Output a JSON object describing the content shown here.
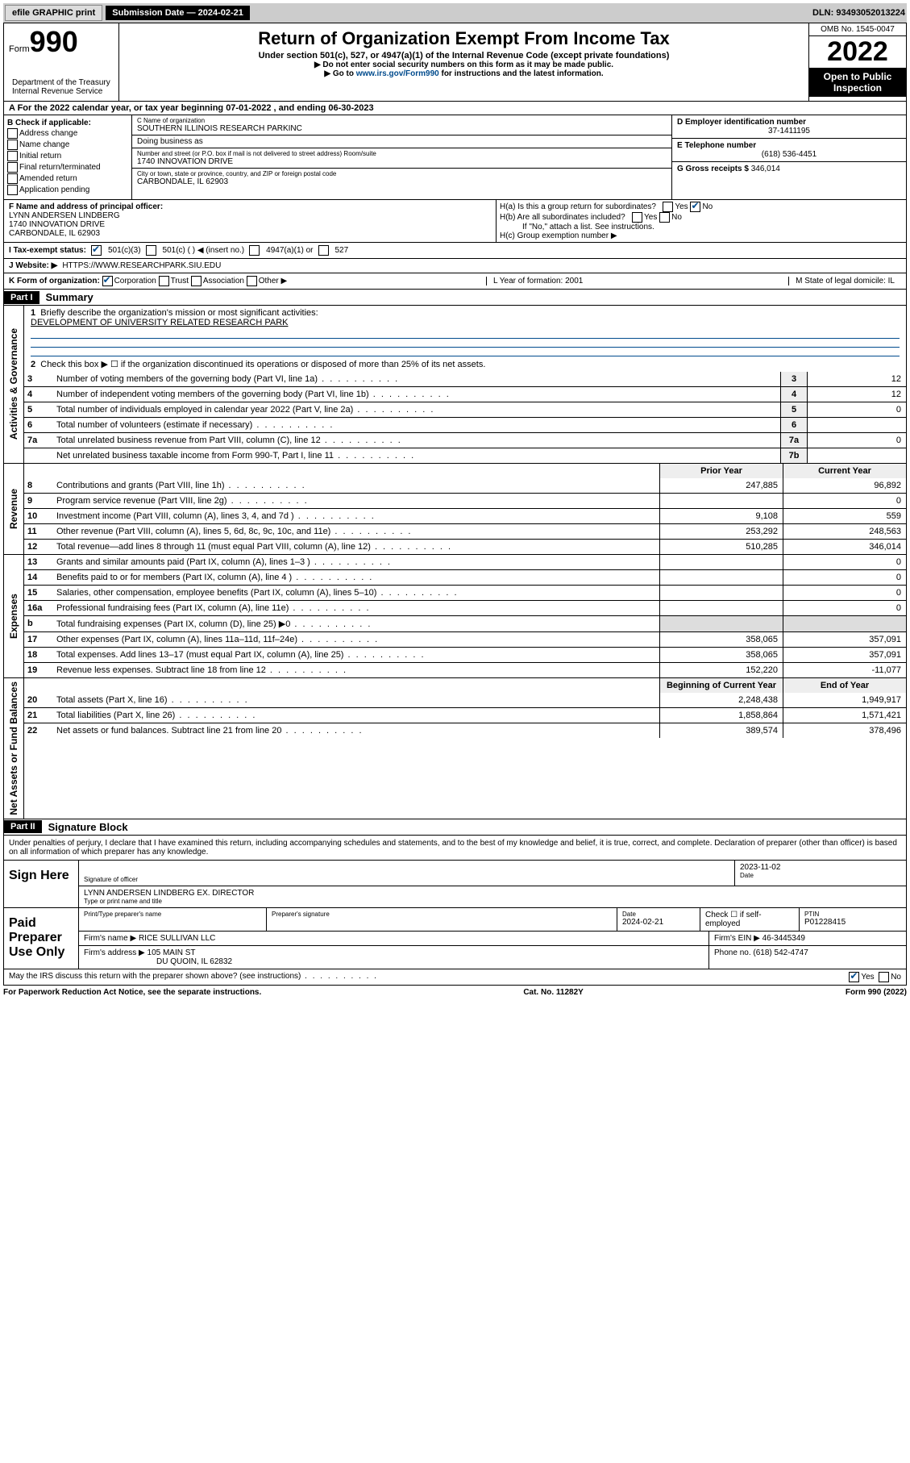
{
  "topbar": {
    "efile": "efile GRAPHIC print",
    "sub_label": "Submission Date — 2024-02-21",
    "dln": "DLN: 93493052013224"
  },
  "header": {
    "form_prefix": "Form",
    "form_num": "990",
    "title": "Return of Organization Exempt From Income Tax",
    "subtitle": "Under section 501(c), 527, or 4947(a)(1) of the Internal Revenue Code (except private foundations)",
    "note1": "▶ Do not enter social security numbers on this form as it may be made public.",
    "note2_pre": "▶ Go to ",
    "note2_link": "www.irs.gov/Form990",
    "note2_post": " for instructions and the latest information.",
    "dept": "Department of the Treasury\nInternal Revenue Service",
    "omb": "OMB No. 1545-0047",
    "year": "2022",
    "inspection": "Open to Public Inspection"
  },
  "tax_year": "A For the 2022 calendar year, or tax year beginning 07-01-2022   , and ending 06-30-2023",
  "section_b": {
    "label": "B Check if applicable:",
    "items": [
      "Address change",
      "Name change",
      "Initial return",
      "Final return/terminated",
      "Amended return",
      "Application pending"
    ]
  },
  "section_c": {
    "clabel": "C Name of organization",
    "name": "SOUTHERN ILLINOIS RESEARCH PARKINC",
    "dba": "Doing business as",
    "addr_label": "Number and street (or P.O. box if mail is not delivered to street address)    Room/suite",
    "addr": "1740 INNOVATION DRIVE",
    "city_label": "City or town, state or province, country, and ZIP or foreign postal code",
    "city": "CARBONDALE, IL  62903"
  },
  "section_right": {
    "d_label": "D Employer identification number",
    "ein": "37-1411195",
    "e_label": "E Telephone number",
    "phone": "(618) 536-4451",
    "g_label": "G Gross receipts $",
    "gross": "346,014"
  },
  "section_f": {
    "label": "F Name and address of principal officer:",
    "name": "LYNN ANDERSEN LINDBERG",
    "addr1": "1740 INNOVATION DRIVE",
    "addr2": "CARBONDALE, IL  62903"
  },
  "section_h": {
    "ha": "H(a)  Is this a group return for subordinates?",
    "hb": "H(b)  Are all subordinates included?",
    "hb_note": "If \"No,\" attach a list. See instructions.",
    "hc": "H(c)  Group exemption number ▶",
    "yes": "Yes",
    "no": "No"
  },
  "status": {
    "label": "I   Tax-exempt status:",
    "opts": [
      "501(c)(3)",
      "501(c) (  ) ◀ (insert no.)",
      "4947(a)(1) or",
      "527"
    ]
  },
  "website": {
    "label": "J   Website: ▶",
    "value": "HTTPS://WWW.RESEARCHPARK.SIU.EDU"
  },
  "formorg": {
    "k": "K Form of organization:",
    "kopts": [
      "Corporation",
      "Trust",
      "Association",
      "Other ▶"
    ],
    "l": "L Year of formation: 2001",
    "m": "M State of legal domicile: IL"
  },
  "part1": {
    "header": "Part I",
    "title": "Summary",
    "tab_gov": "Activities & Governance",
    "tab_rev": "Revenue",
    "tab_exp": "Expenses",
    "tab_net": "Net Assets or Fund Balances",
    "line1_label": "Briefly describe the organization's mission or most significant activities:",
    "line1_value": "DEVELOPMENT OF UNIVERSITY RELATED RESEARCH PARK",
    "line2": "Check this box ▶ ☐  if the organization discontinued its operations or disposed of more than 25% of its net assets.",
    "gov_lines": [
      {
        "n": "3",
        "t": "Number of voting members of the governing body (Part VI, line 1a)",
        "box": "3",
        "v": "12"
      },
      {
        "n": "4",
        "t": "Number of independent voting members of the governing body (Part VI, line 1b)",
        "box": "4",
        "v": "12"
      },
      {
        "n": "5",
        "t": "Total number of individuals employed in calendar year 2022 (Part V, line 2a)",
        "box": "5",
        "v": "0"
      },
      {
        "n": "6",
        "t": "Total number of volunteers (estimate if necessary)",
        "box": "6",
        "v": ""
      },
      {
        "n": "7a",
        "t": "Total unrelated business revenue from Part VIII, column (C), line 12",
        "box": "7a",
        "v": "0"
      },
      {
        "n": "",
        "t": "Net unrelated business taxable income from Form 990-T, Part I, line 11",
        "box": "7b",
        "v": ""
      }
    ],
    "hdr_py": "Prior Year",
    "hdr_cy": "Current Year",
    "rev_lines": [
      {
        "n": "8",
        "t": "Contributions and grants (Part VIII, line 1h)",
        "py": "247,885",
        "cy": "96,892"
      },
      {
        "n": "9",
        "t": "Program service revenue (Part VIII, line 2g)",
        "py": "",
        "cy": "0"
      },
      {
        "n": "10",
        "t": "Investment income (Part VIII, column (A), lines 3, 4, and 7d )",
        "py": "9,108",
        "cy": "559"
      },
      {
        "n": "11",
        "t": "Other revenue (Part VIII, column (A), lines 5, 6d, 8c, 9c, 10c, and 11e)",
        "py": "253,292",
        "cy": "248,563"
      },
      {
        "n": "12",
        "t": "Total revenue—add lines 8 through 11 (must equal Part VIII, column (A), line 12)",
        "py": "510,285",
        "cy": "346,014"
      }
    ],
    "exp_lines": [
      {
        "n": "13",
        "t": "Grants and similar amounts paid (Part IX, column (A), lines 1–3 )",
        "py": "",
        "cy": "0"
      },
      {
        "n": "14",
        "t": "Benefits paid to or for members (Part IX, column (A), line 4 )",
        "py": "",
        "cy": "0"
      },
      {
        "n": "15",
        "t": "Salaries, other compensation, employee benefits (Part IX, column (A), lines 5–10)",
        "py": "",
        "cy": "0"
      },
      {
        "n": "16a",
        "t": "Professional fundraising fees (Part IX, column (A), line 11e)",
        "py": "",
        "cy": "0"
      },
      {
        "n": "b",
        "t": "Total fundraising expenses (Part IX, column (D), line 25) ▶0",
        "py": "shaded",
        "cy": "shaded"
      },
      {
        "n": "17",
        "t": "Other expenses (Part IX, column (A), lines 11a–11d, 11f–24e)",
        "py": "358,065",
        "cy": "357,091"
      },
      {
        "n": "18",
        "t": "Total expenses. Add lines 13–17 (must equal Part IX, column (A), line 25)",
        "py": "358,065",
        "cy": "357,091"
      },
      {
        "n": "19",
        "t": "Revenue less expenses. Subtract line 18 from line 12",
        "py": "152,220",
        "cy": "-11,077"
      }
    ],
    "hdr_boy": "Beginning of Current Year",
    "hdr_eoy": "End of Year",
    "net_lines": [
      {
        "n": "20",
        "t": "Total assets (Part X, line 16)",
        "py": "2,248,438",
        "cy": "1,949,917"
      },
      {
        "n": "21",
        "t": "Total liabilities (Part X, line 26)",
        "py": "1,858,864",
        "cy": "1,571,421"
      },
      {
        "n": "22",
        "t": "Net assets or fund balances. Subtract line 21 from line 20",
        "py": "389,574",
        "cy": "378,496"
      }
    ]
  },
  "part2": {
    "header": "Part II",
    "title": "Signature Block",
    "intro": "Under penalties of perjury, I declare that I have examined this return, including accompanying schedules and statements, and to the best of my knowledge and belief, it is true, correct, and complete. Declaration of preparer (other than officer) is based on all information of which preparer has any knowledge.",
    "sign_here": "Sign Here",
    "sig_officer": "Signature of officer",
    "sig_date_label": "Date",
    "sig_date": "2023-11-02",
    "officer_name": "LYNN ANDERSEN LINDBERG EX. DIRECTOR",
    "officer_sub": "Type or print name and title",
    "paid": "Paid Preparer Use Only",
    "prep_name_label": "Print/Type preparer's name",
    "prep_sig_label": "Preparer's signature",
    "prep_date_label": "Date",
    "prep_date": "2024-02-21",
    "prep_check": "Check ☐ if self-employed",
    "ptin_label": "PTIN",
    "ptin": "P01228415",
    "firm_name_label": "Firm's name    ▶",
    "firm_name": "RICE SULLIVAN LLC",
    "firm_ein_label": "Firm's EIN ▶",
    "firm_ein": "46-3445349",
    "firm_addr_label": "Firm's address ▶",
    "firm_addr1": "105 MAIN ST",
    "firm_addr2": "DU QUOIN, IL  62832",
    "firm_phone_label": "Phone no.",
    "firm_phone": "(618) 542-4747",
    "discuss": "May the IRS discuss this return with the preparer shown above? (see instructions)",
    "yes": "Yes",
    "no": "No"
  },
  "footer": {
    "left": "For Paperwork Reduction Act Notice, see the separate instructions.",
    "mid": "Cat. No. 11282Y",
    "right": "Form 990 (2022)"
  }
}
